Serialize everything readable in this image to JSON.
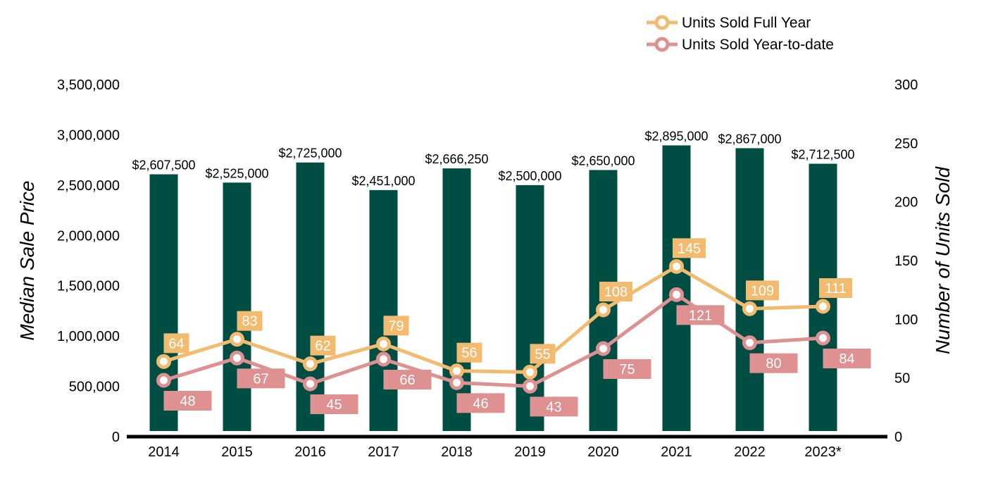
{
  "chart_data": {
    "type": "bar",
    "categories": [
      "2014",
      "2015",
      "2016",
      "2017",
      "2018",
      "2019",
      "2020",
      "2021",
      "2022",
      "2023*"
    ],
    "series": [
      {
        "name": "",
        "type": "bar",
        "axis": "left",
        "color": "#004D44",
        "values": [
          2607500,
          2525000,
          2725000,
          2451000,
          2666250,
          2500000,
          2650000,
          2895000,
          2867000,
          2712500
        ],
        "labels": [
          "$2,607,500",
          "$2,525,000",
          "$2,725,000",
          "$2,451,000",
          "$2,666,250",
          "$2,500,000",
          "$2,650,000",
          "$2,895,000",
          "$2,867,000",
          "$2,712,500"
        ]
      },
      {
        "name": "Units Sold Full Year",
        "type": "line",
        "axis": "right",
        "color": "#F2BB6F",
        "values": [
          64,
          83,
          62,
          79,
          56,
          55,
          108,
          145,
          109,
          111
        ]
      },
      {
        "name": "Units Sold Year-to-date",
        "type": "line",
        "axis": "right",
        "color": "#DE9190",
        "values": [
          48,
          67,
          45,
          66,
          46,
          43,
          75,
          121,
          80,
          84
        ]
      }
    ],
    "ylabel": "Median Sale Price",
    "y2label": "Number of Units Sold",
    "ylim": [
      0,
      3500000
    ],
    "y2lim": [
      0,
      300
    ],
    "yticks": [
      "0",
      "500,000",
      "1,000,000",
      "1,500,000",
      "2,000,000",
      "2,500,000",
      "3,000,000",
      "3,500,000"
    ],
    "y2ticks": [
      "0",
      "50",
      "100",
      "150",
      "200",
      "250",
      "300"
    ],
    "grid": false,
    "legend": "top-right"
  }
}
